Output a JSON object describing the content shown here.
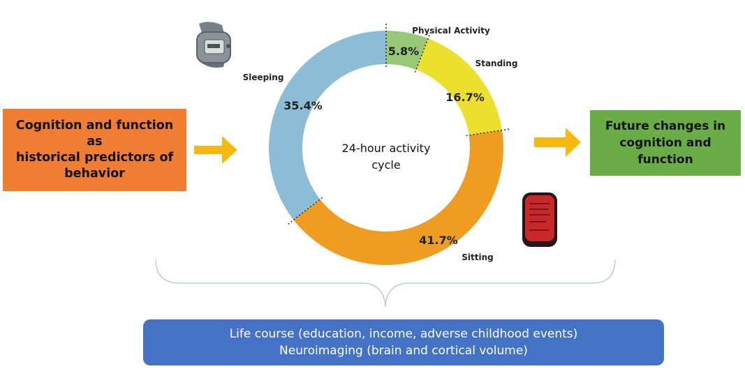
{
  "left_box": {
    "lines": [
      "Cognition and function as",
      "historical predictors of",
      "behavior"
    ]
  },
  "right_box": {
    "lines": [
      "Future changes in",
      "cognition and function"
    ]
  },
  "bottom_box": {
    "line1": "Life course (education, income, adverse childhood events)",
    "line2": "Neuroimaging (brain and cortical volume)"
  },
  "center": {
    "line1": "24-hour activity",
    "line2": "cycle"
  },
  "chart_data": {
    "type": "pie",
    "center_label": "24-hour activity cycle",
    "segments": [
      {
        "name": "Physical Activity",
        "percent_label": "5.8%",
        "value": 5.8,
        "color": "#97c978"
      },
      {
        "name": "Standing",
        "percent_label": "16.7%",
        "value": 16.7,
        "color": "#ece02f"
      },
      {
        "name": "Sitting",
        "percent_label": "41.7%",
        "value": 41.7,
        "color": "#ee9d22"
      },
      {
        "name": "Sleeping",
        "percent_label": "35.4%",
        "value": 35.4,
        "color": "#8dbcd6"
      }
    ]
  },
  "colors": {
    "arrow": "#f7b90f",
    "bracket": "#b8cde0",
    "left_box": "#ef7d32",
    "right_box": "#6aad47",
    "bottom_box": "#4472c4"
  },
  "icons": [
    "wrist-actigraph-device-icon",
    "thigh-accelerometer-device-icon"
  ]
}
